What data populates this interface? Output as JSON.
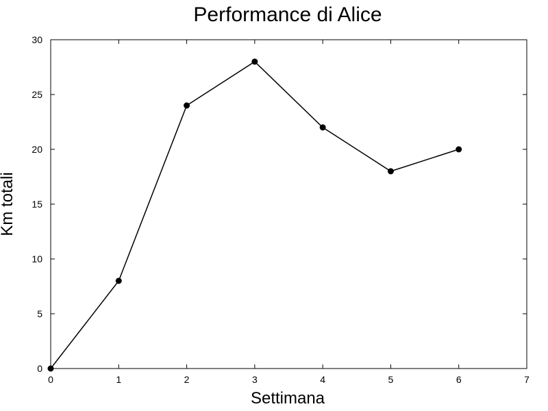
{
  "chart_data": {
    "type": "line",
    "title": "Performance di Alice",
    "xlabel": "Settimana",
    "ylabel": "Km totali",
    "xlim": [
      0,
      7
    ],
    "ylim": [
      0,
      30
    ],
    "x_ticks": [
      "0",
      "1",
      "2",
      "3",
      "4",
      "5",
      "6",
      "7"
    ],
    "y_ticks": [
      "0",
      "5",
      "10",
      "15",
      "20",
      "25",
      "30"
    ],
    "grid": false,
    "series": [
      {
        "x": [
          0,
          1,
          2,
          3,
          4,
          5,
          6
        ],
        "values": [
          0,
          8,
          24,
          28,
          22,
          18,
          20
        ],
        "color": "#000000",
        "marker": "circle"
      }
    ]
  }
}
